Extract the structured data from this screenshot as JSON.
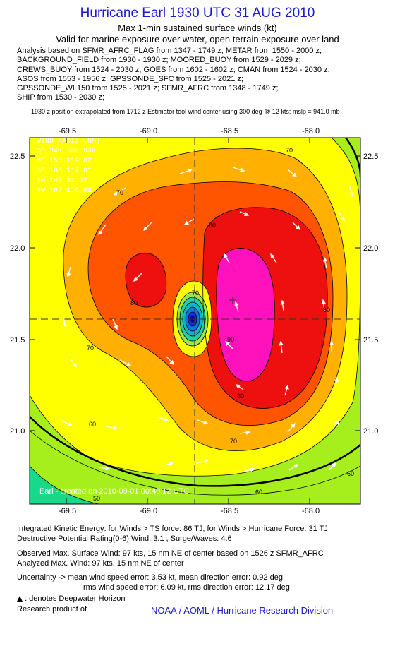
{
  "header": {
    "title": "Hurricane Earl 1930 UTC 31 AUG 2010",
    "subtitle": "Max 1-min sustained surface winds (kt)",
    "validity": "Valid for marine exposure over water, open terrain exposure over land"
  },
  "sources": [
    "Analysis based on SFMR_AFRC_FLAG from 1347 - 1749 z; METAR from 1550 - 2000 z;",
    "BACKGROUND_FIELD from 1930 - 1930 z; MOORED_BUOY from 1529 - 2029 z;",
    "CREWS_BUOY from 1524 - 2030 z; GOES from 1602 - 1602 z; CMAN from 1524 - 2030 z;",
    "ASOS from 1553 - 1956 z; GPSSONDE_SFC from 1525 - 2021 z;",
    "GPSSONDE_WL150 from 1525 - 2021 z; SFMR_AFRC from 1348 - 1749 z;",
    "SHIP from 1530 - 2030 z;"
  ],
  "position_note": "1930 z position extrapolated from 1712 z Estimator tool wind center using 300 deg @ 12 kts; mslp = 941.0 mb",
  "map": {
    "lon_ticks": [
      "-69.5",
      "-69.0",
      "-68.5",
      "-68.0"
    ],
    "lat_ticks": [
      "22.5",
      "22.0",
      "21.5",
      "21.0"
    ],
    "contour_labels": [
      "70",
      "70",
      "80",
      "80",
      "80",
      "90",
      "70",
      "80",
      "70",
      "60",
      "70",
      "60",
      "60",
      "50"
    ],
    "wind_radii": {
      "header": "WIND RADII (NM)",
      "rows": [
        "QD  34K  50K  64K",
        "NE  155  119  82",
        "SE  163  117  81",
        "SW  140   91  52",
        "NW  167  116  68"
      ]
    },
    "stamp": "Earl - created on 2010-09-01 00:49:12 UTC",
    "colors": {
      "c50": "#18d88a",
      "c60": "#a6ee1c",
      "c70": "#ffff00",
      "c80": "#ffb000",
      "c90": "#ff5500",
      "c100": "#ee0f0f",
      "c110": "#ff11bb"
    }
  },
  "footer": {
    "ike": "Integrated Kinetic Energy:  for Winds > TS force: 86 TJ,  for Winds > Hurricane Force: 31 TJ",
    "dpr": "Destructive Potential Rating(0-6)   Wind: 3.1 , Surge/Waves: 4.6",
    "observed": "Observed Max. Surface Wind: 97 kts, 15 nm NE of center based on 1526 z SFMR_AFRC",
    "analyzed": "Analyzed Max. Wind: 97 kts, 15 nm NE of center",
    "uncertainty1": "Uncertainty -> mean wind speed error: 3.53 kt,   mean direction error: 0.92 deg",
    "uncertainty2": "rms wind speed error: 6.09 kt,   rms direction error: 12.17 deg",
    "deepwater": ": denotes Deepwater Horizon",
    "research": "Research product of",
    "org": "NOAA / AOML / Hurricane Research Division"
  }
}
